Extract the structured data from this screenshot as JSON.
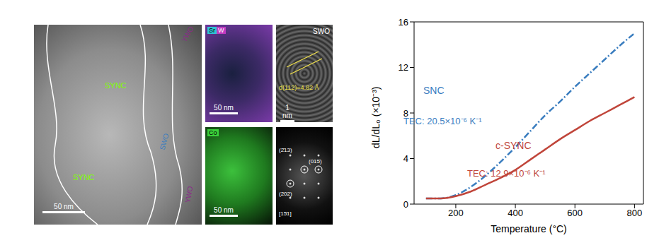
{
  "images": {
    "tem": {
      "labels": [
        "SYNC",
        "SYNC",
        "SWO",
        "YWO",
        "YWO"
      ],
      "scale_bar": "50 nm"
    },
    "eds_sr_w": {
      "elements": [
        "Sr",
        "W"
      ],
      "scale_bar": "50 nm"
    },
    "eds_co": {
      "elements": [
        "Co"
      ],
      "scale_bar": "50 nm"
    },
    "hrtem": {
      "label": "SWO",
      "annotation": "d(112)=4.82 Å",
      "scale_bar": "1 nm"
    },
    "fft": {
      "spots": [
        "(2̄13)",
        "(015̄)",
        "(202)"
      ],
      "zone_axis": "[15̄1]"
    }
  },
  "chart_data": {
    "type": "line",
    "x_label": "Temperature (°C)",
    "y_label": "dL/dL₀ (×10⁻³)",
    "x": [
      100,
      150,
      200,
      250,
      300,
      350,
      400,
      450,
      500,
      550,
      600,
      650,
      700,
      750,
      800
    ],
    "series": [
      {
        "name": "SNC",
        "color": "#3a7dbf",
        "line_style": "dashdot",
        "annotation": "TEC: 20.5×10⁻⁶ K⁻¹",
        "values": [
          0.5,
          0.5,
          0.8,
          1.5,
          2.5,
          3.7,
          5.0,
          6.4,
          7.8,
          9.0,
          10.3,
          11.5,
          12.7,
          13.9,
          15.0
        ]
      },
      {
        "name": "c-SYNC",
        "color": "#c0453a",
        "line_style": "solid",
        "annotation": "TEC: 12.9×10⁻⁶ K⁻¹",
        "values": [
          0.5,
          0.5,
          0.7,
          1.1,
          1.7,
          2.3,
          3.0,
          3.9,
          4.8,
          5.7,
          6.5,
          7.3,
          8.0,
          8.7,
          9.4
        ]
      }
    ],
    "xlim": [
      60,
      830
    ],
    "xticks": [
      200,
      400,
      600,
      800
    ],
    "ylim": [
      0,
      16
    ],
    "yticks": [
      0,
      4,
      8,
      12,
      16
    ]
  }
}
